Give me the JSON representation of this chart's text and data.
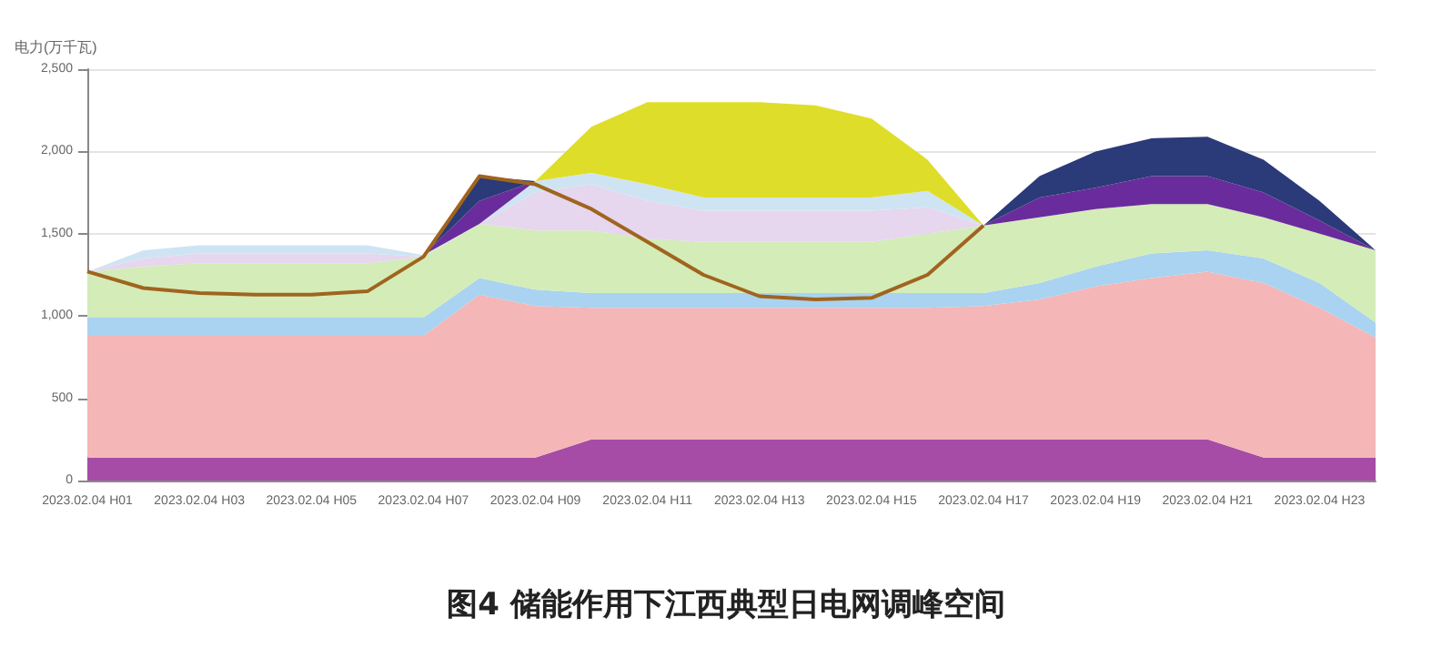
{
  "chart_data": {
    "type": "area",
    "title": "图4 储能作用下江西典型日电网调峰空间",
    "ylabel": "电力(万千瓦)",
    "stacked": true,
    "grid": "y",
    "marker": "none",
    "line_style": "solid",
    "categories": [
      "2023.02.04 H01",
      null,
      "2023.02.04 H03",
      null,
      "2023.02.04 H05",
      null,
      "2023.02.04 H07",
      null,
      "2023.02.04 H09",
      null,
      "2023.02.04 H11",
      null,
      "2023.02.04 H13",
      null,
      "2023.02.04 H15",
      null,
      "2023.02.04 H17",
      null,
      "2023.02.04 H19",
      null,
      "2023.02.04 H21",
      null,
      "2023.02.04 H23",
      null
    ],
    "ylim": [
      0,
      2500
    ],
    "yticks": [
      0,
      500,
      {
        "value": 1000,
        "label": "1,000"
      },
      {
        "value": 1500,
        "label": "1,500"
      },
      {
        "value": 2000,
        "label": "2,000"
      },
      {
        "value": 2500,
        "label": "2,500"
      }
    ],
    "series": [
      {
        "color": "#a64ca6",
        "values": [
          140,
          140,
          140,
          140,
          140,
          140,
          140,
          140,
          140,
          250,
          250,
          250,
          250,
          250,
          250,
          250,
          250,
          250,
          250,
          250,
          250,
          140,
          140,
          140
        ]
      },
      {
        "color": "#f4b6b6",
        "values": [
          740,
          740,
          740,
          740,
          740,
          740,
          740,
          990,
          920,
          800,
          800,
          800,
          800,
          800,
          800,
          800,
          810,
          850,
          930,
          980,
          1020,
          1060,
          910,
          730
        ]
      },
      {
        "color": "#a9d3f0",
        "values": [
          110,
          110,
          110,
          110,
          110,
          110,
          110,
          100,
          100,
          90,
          90,
          90,
          90,
          90,
          90,
          90,
          80,
          100,
          120,
          150,
          130,
          150,
          150,
          90
        ]
      },
      {
        "color": "#d4ecb8",
        "values": [
          280,
          310,
          330,
          330,
          330,
          330,
          370,
          330,
          360,
          380,
          330,
          310,
          310,
          310,
          310,
          360,
          410,
          400,
          350,
          300,
          280,
          250,
          300,
          440
        ]
      },
      {
        "color": "#e6d6ee",
        "values": [
          0,
          50,
          60,
          60,
          60,
          60,
          0,
          0,
          230,
          280,
          230,
          190,
          190,
          190,
          190,
          160,
          0,
          null,
          null,
          null,
          null,
          null,
          null,
          null
        ]
      },
      {
        "color": "#cfe4f2",
        "values": [
          0,
          50,
          50,
          50,
          50,
          50,
          10,
          0,
          70,
          70,
          100,
          80,
          80,
          80,
          80,
          100,
          0,
          null,
          null,
          null,
          null,
          null,
          null,
          null
        ]
      },
      {
        "color": "#6a2c9c",
        "values": [
          null,
          null,
          null,
          null,
          null,
          null,
          0,
          140,
          0,
          null,
          null,
          null,
          null,
          null,
          null,
          null,
          0,
          120,
          130,
          170,
          170,
          150,
          80,
          0
        ]
      },
      {
        "color": "#2b3a78",
        "values": [
          null,
          null,
          null,
          null,
          null,
          null,
          0,
          150,
          0,
          null,
          null,
          null,
          null,
          null,
          null,
          null,
          0,
          130,
          220,
          230,
          240,
          200,
          120,
          0
        ]
      },
      {
        "color": "#dede2a",
        "values": [
          null,
          null,
          null,
          null,
          null,
          null,
          null,
          null,
          0,
          280,
          500,
          580,
          580,
          560,
          480,
          190,
          0,
          null,
          null,
          null,
          null,
          null,
          null,
          null
        ]
      },
      {
        "type": "line",
        "color": "#a0641e",
        "values": [
          1270,
          1170,
          1140,
          1130,
          1130,
          1150,
          1360,
          1850,
          1800,
          1650,
          1450,
          1250,
          1120,
          1100,
          1110,
          1250,
          1550,
          null,
          null,
          null,
          null,
          null,
          null,
          null
        ]
      }
    ]
  }
}
